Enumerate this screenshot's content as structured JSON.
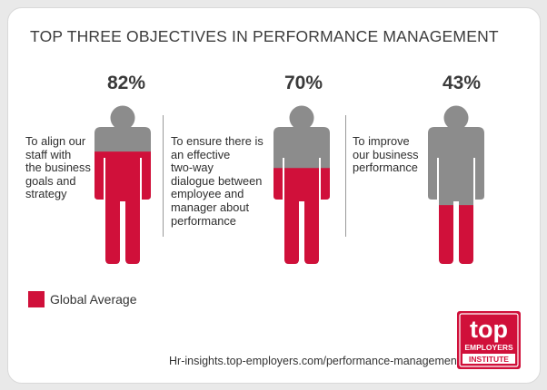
{
  "chart_data": {
    "type": "pictogram",
    "title": "TOP THREE OBJECTIVES IN PERFORMANCE MANAGEMENT",
    "categories": [
      "To align our staff with the business goals and strategy",
      "To ensure there is an effective two-way dialogue between employee and manager about performance",
      "To improve our business performance"
    ],
    "values": [
      82,
      70,
      43
    ],
    "value_labels": [
      "82%",
      "70%",
      "43%"
    ],
    "unit": "%",
    "legend": [
      "Global Average"
    ],
    "colors": {
      "fill": "#d0103a",
      "empty": "#8c8c8c"
    }
  },
  "descriptions": [
    [
      "To align our",
      "staff with",
      "the business",
      "goals and",
      "strategy"
    ],
    [
      "To ensure there is",
      "an effective",
      "two-way",
      "dialogue between",
      "employee and",
      "manager about",
      "performance"
    ],
    [
      "To improve",
      "our business",
      "performance"
    ]
  ],
  "source_url": "Hr-insights.top-employers.com/performance-management",
  "logo": {
    "top": "top",
    "employers": "EMPLOYERS",
    "institute": "INSTITUTE"
  }
}
